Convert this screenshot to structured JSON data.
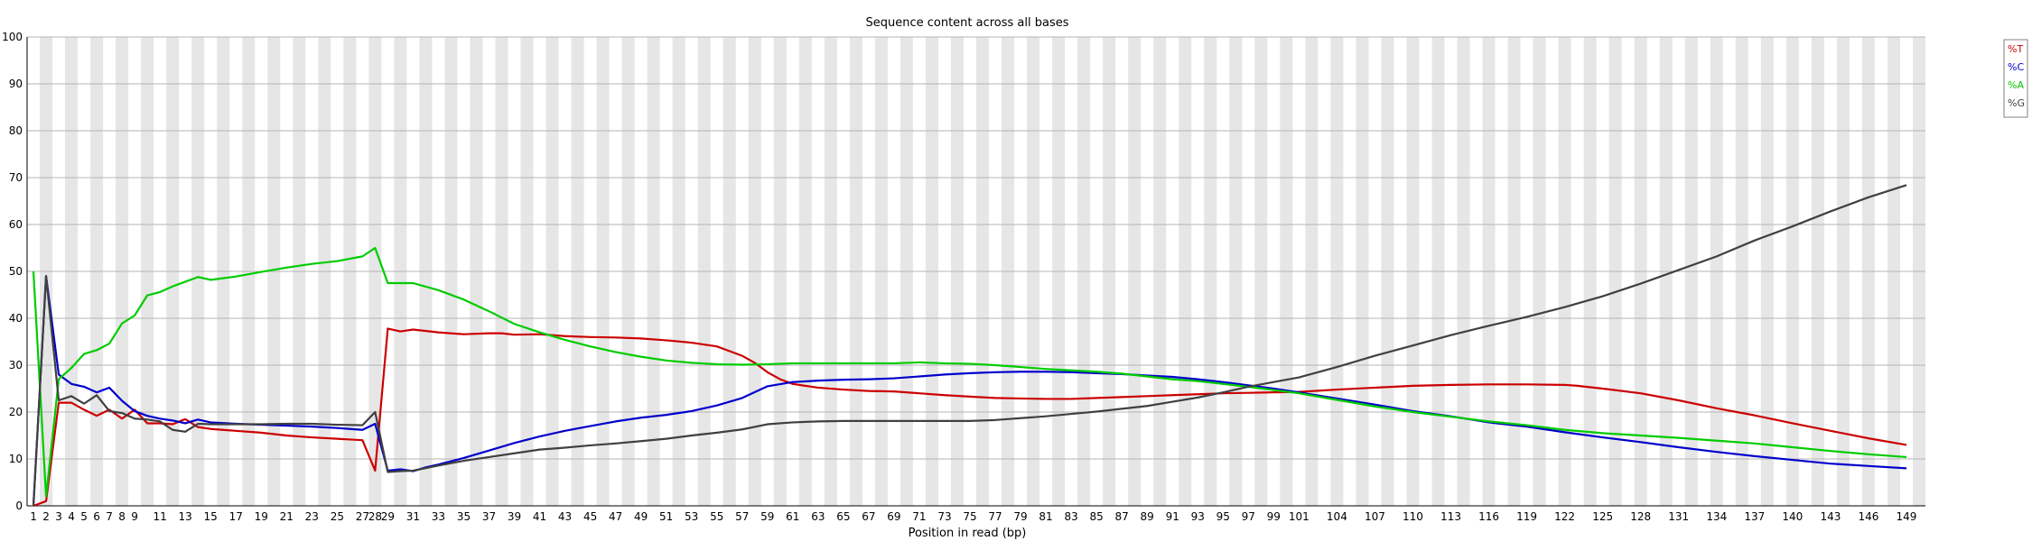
{
  "chart_data": {
    "type": "line",
    "title": "Sequence content across all bases",
    "xlabel": "Position in read (bp)",
    "ylabel": "",
    "ylim": [
      0,
      100
    ],
    "yticks": [
      0,
      10,
      20,
      30,
      40,
      50,
      60,
      70,
      80,
      90,
      100
    ],
    "grid": true,
    "legend_position": "top-right",
    "categories": [
      "1",
      "2",
      "3",
      "4",
      "5",
      "6",
      "7",
      "8",
      "9",
      "11",
      "13",
      "15",
      "17",
      "19",
      "21",
      "23",
      "25",
      "27",
      "28",
      "29",
      "31",
      "33",
      "35",
      "37",
      "39",
      "41",
      "43",
      "45",
      "47",
      "49",
      "51",
      "53",
      "55",
      "57",
      "59",
      "61",
      "63",
      "65",
      "67",
      "69",
      "71",
      "73",
      "75",
      "77",
      "79",
      "81",
      "83",
      "85",
      "87",
      "89",
      "91",
      "93",
      "95",
      "97",
      "99",
      "101",
      "104",
      "107",
      "110",
      "113",
      "116",
      "119",
      "122",
      "125",
      "128",
      "131",
      "134",
      "137",
      "140",
      "143",
      "146",
      "149"
    ],
    "series": [
      {
        "name": "%T",
        "color": "#cc0000",
        "points": [
          [
            1,
            0
          ],
          [
            2,
            1
          ],
          [
            3,
            22
          ],
          [
            4,
            22
          ],
          [
            5,
            20.5
          ],
          [
            6,
            19.2
          ],
          [
            7,
            20.5
          ],
          [
            8,
            18.6
          ],
          [
            9,
            20.5
          ],
          [
            10,
            17.6
          ],
          [
            11,
            17.6
          ],
          [
            12,
            17.4
          ],
          [
            13,
            18.5
          ],
          [
            14,
            16.8
          ],
          [
            15,
            16.4
          ],
          [
            17,
            16
          ],
          [
            19,
            15.6
          ],
          [
            21,
            15
          ],
          [
            23,
            14.6
          ],
          [
            25,
            14.3
          ],
          [
            27,
            14
          ],
          [
            28,
            7.5
          ],
          [
            29,
            37.8
          ],
          [
            30,
            37.2
          ],
          [
            31,
            37.6
          ],
          [
            33,
            37
          ],
          [
            35,
            36.6
          ],
          [
            37,
            36.8
          ],
          [
            38,
            36.8
          ],
          [
            39,
            36.5
          ],
          [
            41,
            36.6
          ],
          [
            43,
            36.2
          ],
          [
            45,
            36
          ],
          [
            47,
            35.9
          ],
          [
            49,
            35.7
          ],
          [
            51,
            35.3
          ],
          [
            53,
            34.8
          ],
          [
            55,
            34
          ],
          [
            56,
            33
          ],
          [
            57,
            32
          ],
          [
            58,
            30.5
          ],
          [
            59,
            28.5
          ],
          [
            60,
            27
          ],
          [
            61,
            26
          ],
          [
            63,
            25.2
          ],
          [
            65,
            24.8
          ],
          [
            67,
            24.5
          ],
          [
            69,
            24.4
          ],
          [
            71,
            24
          ],
          [
            73,
            23.6
          ],
          [
            75,
            23.3
          ],
          [
            77,
            23
          ],
          [
            79,
            22.9
          ],
          [
            81,
            22.8
          ],
          [
            83,
            22.8
          ],
          [
            85,
            23
          ],
          [
            87,
            23.2
          ],
          [
            89,
            23.4
          ],
          [
            91,
            23.6
          ],
          [
            93,
            23.8
          ],
          [
            95,
            24
          ],
          [
            97,
            24.1
          ],
          [
            99,
            24.2
          ],
          [
            101,
            24.3
          ],
          [
            104,
            24.8
          ],
          [
            107,
            25.2
          ],
          [
            110,
            25.6
          ],
          [
            113,
            25.8
          ],
          [
            116,
            25.9
          ],
          [
            119,
            25.9
          ],
          [
            122,
            25.8
          ],
          [
            123,
            25.6
          ],
          [
            125,
            25
          ],
          [
            128,
            24
          ],
          [
            131,
            22.5
          ],
          [
            134,
            20.8
          ],
          [
            137,
            19.3
          ],
          [
            140,
            17.6
          ],
          [
            143,
            16
          ],
          [
            146,
            14.4
          ],
          [
            149,
            13
          ]
        ]
      },
      {
        "name": "%C",
        "color": "#0000cc",
        "points": [
          [
            1,
            0
          ],
          [
            2,
            49
          ],
          [
            3,
            28
          ],
          [
            4,
            26
          ],
          [
            5,
            25.4
          ],
          [
            6,
            24.2
          ],
          [
            7,
            25.2
          ],
          [
            8,
            22.4
          ],
          [
            9,
            20.2
          ],
          [
            10,
            19.2
          ],
          [
            11,
            18.6
          ],
          [
            12,
            18.2
          ],
          [
            13,
            17.6
          ],
          [
            14,
            18.4
          ],
          [
            15,
            17.8
          ],
          [
            17,
            17.5
          ],
          [
            19,
            17.3
          ],
          [
            21,
            17.1
          ],
          [
            23,
            16.9
          ],
          [
            25,
            16.6
          ],
          [
            27,
            16.2
          ],
          [
            28,
            17.5
          ],
          [
            29,
            7.5
          ],
          [
            30,
            7.8
          ],
          [
            31,
            7.4
          ],
          [
            32,
            8.2
          ],
          [
            33,
            8.8
          ],
          [
            35,
            10.2
          ],
          [
            37,
            11.8
          ],
          [
            39,
            13.4
          ],
          [
            41,
            14.8
          ],
          [
            43,
            16
          ],
          [
            45,
            17
          ],
          [
            47,
            18
          ],
          [
            49,
            18.8
          ],
          [
            51,
            19.4
          ],
          [
            53,
            20.2
          ],
          [
            55,
            21.4
          ],
          [
            57,
            23
          ],
          [
            59,
            25.5
          ],
          [
            61,
            26.4
          ],
          [
            63,
            26.7
          ],
          [
            65,
            26.9
          ],
          [
            67,
            27
          ],
          [
            69,
            27.2
          ],
          [
            71,
            27.6
          ],
          [
            73,
            28
          ],
          [
            75,
            28.3
          ],
          [
            77,
            28.5
          ],
          [
            79,
            28.6
          ],
          [
            81,
            28.6
          ],
          [
            83,
            28.5
          ],
          [
            85,
            28.3
          ],
          [
            87,
            28.1
          ],
          [
            89,
            27.8
          ],
          [
            91,
            27.5
          ],
          [
            93,
            27
          ],
          [
            95,
            26.4
          ],
          [
            97,
            25.7
          ],
          [
            99,
            25
          ],
          [
            101,
            24.2
          ],
          [
            104,
            22.9
          ],
          [
            107,
            21.6
          ],
          [
            110,
            20.2
          ],
          [
            113,
            19.1
          ],
          [
            116,
            17.8
          ],
          [
            119,
            16.9
          ],
          [
            122,
            15.7
          ],
          [
            125,
            14.6
          ],
          [
            128,
            13.6
          ],
          [
            131,
            12.5
          ],
          [
            134,
            11.5
          ],
          [
            137,
            10.6
          ],
          [
            140,
            9.8
          ],
          [
            143,
            9
          ],
          [
            146,
            8.5
          ],
          [
            149,
            8
          ]
        ]
      },
      {
        "name": "%A",
        "color": "#00cc00",
        "points": [
          [
            1,
            50
          ],
          [
            2,
            2
          ],
          [
            3,
            27
          ],
          [
            4,
            29.4
          ],
          [
            5,
            32.4
          ],
          [
            6,
            33.2
          ],
          [
            7,
            34.6
          ],
          [
            8,
            38.9
          ],
          [
            9,
            40.6
          ],
          [
            10,
            44.9
          ],
          [
            11,
            45.6
          ],
          [
            12,
            46.8
          ],
          [
            13,
            47.8
          ],
          [
            14,
            48.8
          ],
          [
            15,
            48.2
          ],
          [
            17,
            48.9
          ],
          [
            19,
            49.9
          ],
          [
            21,
            50.8
          ],
          [
            23,
            51.6
          ],
          [
            25,
            52.2
          ],
          [
            27,
            53.2
          ],
          [
            28,
            55
          ],
          [
            29,
            47.5
          ],
          [
            31,
            47.5
          ],
          [
            33,
            46
          ],
          [
            35,
            44
          ],
          [
            37,
            41.5
          ],
          [
            39,
            38.8
          ],
          [
            41,
            37
          ],
          [
            43,
            35.4
          ],
          [
            45,
            34
          ],
          [
            47,
            32.8
          ],
          [
            49,
            31.8
          ],
          [
            51,
            31
          ],
          [
            53,
            30.5
          ],
          [
            55,
            30.2
          ],
          [
            57,
            30.1
          ],
          [
            59,
            30.2
          ],
          [
            61,
            30.4
          ],
          [
            63,
            30.4
          ],
          [
            65,
            30.4
          ],
          [
            67,
            30.4
          ],
          [
            69,
            30.4
          ],
          [
            71,
            30.6
          ],
          [
            73,
            30.4
          ],
          [
            75,
            30.3
          ],
          [
            77,
            30
          ],
          [
            79,
            29.6
          ],
          [
            81,
            29.2
          ],
          [
            83,
            28.9
          ],
          [
            85,
            28.6
          ],
          [
            87,
            28.2
          ],
          [
            89,
            27.6
          ],
          [
            91,
            27
          ],
          [
            93,
            26.6
          ],
          [
            95,
            26
          ],
          [
            97,
            25.4
          ],
          [
            99,
            24.7
          ],
          [
            101,
            24
          ],
          [
            104,
            22.6
          ],
          [
            107,
            21.2
          ],
          [
            110,
            20
          ],
          [
            113,
            19
          ],
          [
            116,
            18
          ],
          [
            119,
            17.2
          ],
          [
            122,
            16.2
          ],
          [
            125,
            15.5
          ],
          [
            128,
            15
          ],
          [
            131,
            14.5
          ],
          [
            134,
            13.9
          ],
          [
            137,
            13.3
          ],
          [
            140,
            12.5
          ],
          [
            143,
            11.7
          ],
          [
            146,
            11
          ],
          [
            149,
            10.4
          ]
        ]
      },
      {
        "name": "%G",
        "color": "#404040",
        "points": [
          [
            1,
            0
          ],
          [
            2,
            49
          ],
          [
            3,
            22.5
          ],
          [
            4,
            23.4
          ],
          [
            5,
            21.8
          ],
          [
            6,
            23.6
          ],
          [
            7,
            20.2
          ],
          [
            8,
            19.8
          ],
          [
            9,
            18.6
          ],
          [
            10,
            18.4
          ],
          [
            11,
            18
          ],
          [
            12,
            16.2
          ],
          [
            13,
            15.8
          ],
          [
            14,
            17.5
          ],
          [
            15,
            17.4
          ],
          [
            17,
            17.4
          ],
          [
            19,
            17.4
          ],
          [
            21,
            17.5
          ],
          [
            23,
            17.5
          ],
          [
            25,
            17.3
          ],
          [
            27,
            17.2
          ],
          [
            28,
            20
          ],
          [
            29,
            7.2
          ],
          [
            30,
            7.4
          ],
          [
            31,
            7.5
          ],
          [
            33,
            8.6
          ],
          [
            35,
            9.6
          ],
          [
            37,
            10.4
          ],
          [
            39,
            11.2
          ],
          [
            41,
            12
          ],
          [
            43,
            12.4
          ],
          [
            45,
            12.9
          ],
          [
            47,
            13.3
          ],
          [
            49,
            13.8
          ],
          [
            51,
            14.3
          ],
          [
            53,
            15
          ],
          [
            55,
            15.6
          ],
          [
            57,
            16.3
          ],
          [
            59,
            17.4
          ],
          [
            61,
            17.8
          ],
          [
            63,
            18
          ],
          [
            65,
            18.1
          ],
          [
            67,
            18.1
          ],
          [
            69,
            18.1
          ],
          [
            71,
            18.1
          ],
          [
            73,
            18.1
          ],
          [
            75,
            18.1
          ],
          [
            77,
            18.3
          ],
          [
            79,
            18.7
          ],
          [
            81,
            19.1
          ],
          [
            83,
            19.6
          ],
          [
            85,
            20.1
          ],
          [
            87,
            20.7
          ],
          [
            89,
            21.3
          ],
          [
            91,
            22.2
          ],
          [
            93,
            23.1
          ],
          [
            95,
            24.2
          ],
          [
            97,
            25.4
          ],
          [
            99,
            26.4
          ],
          [
            101,
            27.4
          ],
          [
            104,
            29.6
          ],
          [
            107,
            32
          ],
          [
            110,
            34.2
          ],
          [
            113,
            36.4
          ],
          [
            116,
            38.4
          ],
          [
            119,
            40.3
          ],
          [
            122,
            42.4
          ],
          [
            125,
            44.7
          ],
          [
            128,
            47.4
          ],
          [
            131,
            50.3
          ],
          [
            134,
            53.2
          ],
          [
            137,
            56.6
          ],
          [
            140,
            59.6
          ],
          [
            143,
            62.8
          ],
          [
            146,
            65.8
          ],
          [
            149,
            68.4
          ]
        ]
      }
    ]
  }
}
